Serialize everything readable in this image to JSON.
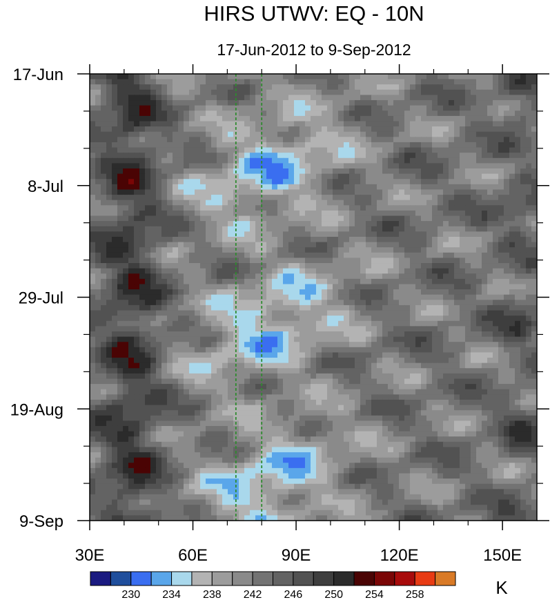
{
  "chart_data": {
    "type": "heatmap",
    "title": "HIRS UTWV: EQ - 10N",
    "subtitle": "17-Jun-2012 to 9-Sep-2012",
    "xlabel": "",
    "ylabel": "",
    "x_range": [
      30,
      160
    ],
    "x_ticks": [
      {
        "value": 30,
        "label": "30E"
      },
      {
        "value": 60,
        "label": "60E"
      },
      {
        "value": 90,
        "label": "90E"
      },
      {
        "value": 120,
        "label": "120E"
      },
      {
        "value": 150,
        "label": "150E"
      }
    ],
    "y_range": [
      "2012-06-17",
      "2012-09-09"
    ],
    "y_ticks": [
      {
        "date": "2012-06-17",
        "label": "17-Jun"
      },
      {
        "date": "2012-07-08",
        "label": "8-Jul"
      },
      {
        "date": "2012-07-29",
        "label": "29-Jul"
      },
      {
        "date": "2012-08-19",
        "label": "19-Aug"
      },
      {
        "date": "2012-09-09",
        "label": "9-Sep"
      }
    ],
    "reference_lines": [
      {
        "axis": "x",
        "value": 72.5,
        "style": "dashed",
        "color": "#2e8b2e"
      },
      {
        "axis": "x",
        "value": 80,
        "style": "dashed",
        "color": "#2e8b2e"
      }
    ],
    "colorbar": {
      "unit": "K",
      "levels": [
        228,
        230,
        232,
        234,
        236,
        238,
        240,
        242,
        244,
        246,
        248,
        250,
        252,
        254,
        256,
        258,
        260
      ],
      "tick_labels": [
        "230",
        "234",
        "238",
        "242",
        "246",
        "250",
        "254",
        "258"
      ],
      "colors": [
        "#1a1a80",
        "#1f4e9c",
        "#3a6ef0",
        "#5aa6ea",
        "#a9d8ec",
        "#b3b3b3",
        "#9c9c9c",
        "#8a8a8a",
        "#737373",
        "#636363",
        "#525252",
        "#3e3e3e",
        "#2b2b2b",
        "#4a0404",
        "#7a0606",
        "#a80b0b",
        "#e83b13",
        "#d97a26"
      ]
    },
    "grid": false,
    "legend": "bottom colorbar"
  }
}
